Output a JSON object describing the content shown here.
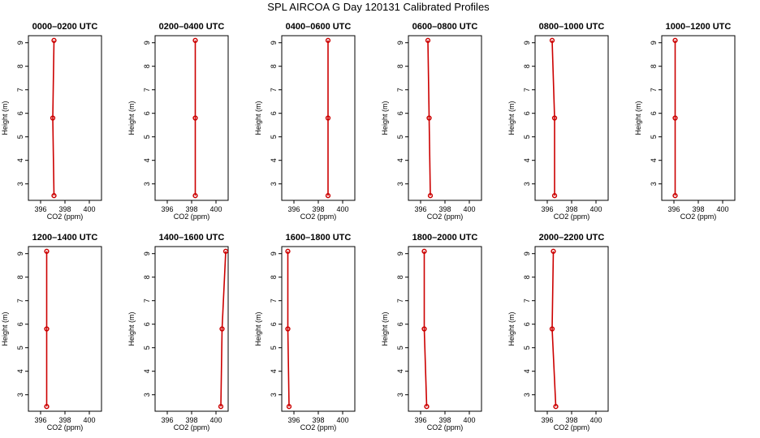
{
  "figure": {
    "title": "SPL AIRCOA G  Day 120131  Calibrated Profiles"
  },
  "chart_data": [
    {
      "type": "line",
      "title": "0000–0200 UTC",
      "xlabel": "CO2 (ppm)",
      "ylabel": "Height (m)",
      "xlim": [
        395,
        401
      ],
      "ylim": [
        2.3,
        9.3
      ],
      "xticks": [
        396,
        398,
        400
      ],
      "yticks": [
        3,
        4,
        5,
        6,
        7,
        8,
        9
      ],
      "grid": false,
      "x": [
        397.1,
        397.0,
        397.1
      ],
      "y": [
        2.5,
        5.8,
        9.1
      ]
    },
    {
      "type": "line",
      "title": "0200–0400 UTC",
      "xlabel": "CO2 (ppm)",
      "ylabel": "Height (m)",
      "xlim": [
        395,
        401
      ],
      "ylim": [
        2.3,
        9.3
      ],
      "xticks": [
        396,
        398,
        400
      ],
      "yticks": [
        3,
        4,
        5,
        6,
        7,
        8,
        9
      ],
      "grid": false,
      "x": [
        398.3,
        398.3,
        398.3
      ],
      "y": [
        2.5,
        5.8,
        9.1
      ]
    },
    {
      "type": "line",
      "title": "0400–0600 UTC",
      "xlabel": "CO2 (ppm)",
      "ylabel": "Height (m)",
      "xlim": [
        395,
        401
      ],
      "ylim": [
        2.3,
        9.3
      ],
      "xticks": [
        396,
        398,
        400
      ],
      "yticks": [
        3,
        4,
        5,
        6,
        7,
        8,
        9
      ],
      "grid": false,
      "x": [
        398.8,
        398.8,
        398.8
      ],
      "y": [
        2.5,
        5.8,
        9.1
      ]
    },
    {
      "type": "line",
      "title": "0600–0800 UTC",
      "xlabel": "CO2 (ppm)",
      "ylabel": "Height (m)",
      "xlim": [
        395,
        401
      ],
      "ylim": [
        2.3,
        9.3
      ],
      "xticks": [
        396,
        398,
        400
      ],
      "yticks": [
        3,
        4,
        5,
        6,
        7,
        8,
        9
      ],
      "grid": false,
      "x": [
        396.8,
        396.7,
        396.6
      ],
      "y": [
        2.5,
        5.8,
        9.1
      ]
    },
    {
      "type": "line",
      "title": "0800–1000 UTC",
      "xlabel": "CO2 (ppm)",
      "ylabel": "Height (m)",
      "xlim": [
        395,
        401
      ],
      "ylim": [
        2.3,
        9.3
      ],
      "xticks": [
        396,
        398,
        400
      ],
      "yticks": [
        3,
        4,
        5,
        6,
        7,
        8,
        9
      ],
      "grid": false,
      "x": [
        396.6,
        396.6,
        396.4
      ],
      "y": [
        2.5,
        5.8,
        9.1
      ]
    },
    {
      "type": "line",
      "title": "1000–1200 UTC",
      "xlabel": "CO2 (ppm)",
      "ylabel": "Height (m)",
      "xlim": [
        395,
        401
      ],
      "ylim": [
        2.3,
        9.3
      ],
      "xticks": [
        396,
        398,
        400
      ],
      "yticks": [
        3,
        4,
        5,
        6,
        7,
        8,
        9
      ],
      "grid": false,
      "x": [
        396.1,
        396.1,
        396.1
      ],
      "y": [
        2.5,
        5.8,
        9.1
      ]
    },
    {
      "type": "line",
      "title": "1200–1400 UTC",
      "xlabel": "CO2 (ppm)",
      "ylabel": "Height (m)",
      "xlim": [
        395,
        401
      ],
      "ylim": [
        2.3,
        9.3
      ],
      "xticks": [
        396,
        398,
        400
      ],
      "yticks": [
        3,
        4,
        5,
        6,
        7,
        8,
        9
      ],
      "grid": false,
      "x": [
        396.5,
        396.5,
        396.5
      ],
      "y": [
        2.5,
        5.8,
        9.1
      ]
    },
    {
      "type": "line",
      "title": "1400–1600 UTC",
      "xlabel": "CO2 (ppm)",
      "ylabel": "Height (m)",
      "xlim": [
        395,
        401
      ],
      "ylim": [
        2.3,
        9.3
      ],
      "xticks": [
        396,
        398,
        400
      ],
      "yticks": [
        3,
        4,
        5,
        6,
        7,
        8,
        9
      ],
      "grid": false,
      "x": [
        400.4,
        400.5,
        400.8
      ],
      "y": [
        2.5,
        5.8,
        9.1
      ]
    },
    {
      "type": "line",
      "title": "1600–1800 UTC",
      "xlabel": "CO2 (ppm)",
      "ylabel": "Height (m)",
      "xlim": [
        395,
        401
      ],
      "ylim": [
        2.3,
        9.3
      ],
      "xticks": [
        396,
        398,
        400
      ],
      "yticks": [
        3,
        4,
        5,
        6,
        7,
        8,
        9
      ],
      "grid": false,
      "x": [
        395.6,
        395.5,
        395.5
      ],
      "y": [
        2.5,
        5.8,
        9.1
      ]
    },
    {
      "type": "line",
      "title": "1800–2000 UTC",
      "xlabel": "CO2 (ppm)",
      "ylabel": "Height (m)",
      "xlim": [
        395,
        401
      ],
      "ylim": [
        2.3,
        9.3
      ],
      "xticks": [
        396,
        398,
        400
      ],
      "yticks": [
        3,
        4,
        5,
        6,
        7,
        8,
        9
      ],
      "grid": false,
      "x": [
        396.5,
        396.3,
        396.3
      ],
      "y": [
        2.5,
        5.8,
        9.1
      ]
    },
    {
      "type": "line",
      "title": "2000–2200 UTC",
      "xlabel": "CO2 (ppm)",
      "ylabel": "Height (m)",
      "xlim": [
        395,
        401
      ],
      "ylim": [
        2.3,
        9.3
      ],
      "xticks": [
        396,
        398,
        400
      ],
      "yticks": [
        3,
        4,
        5,
        6,
        7,
        8,
        9
      ],
      "grid": false,
      "x": [
        396.7,
        396.4,
        396.5
      ],
      "y": [
        2.5,
        5.8,
        9.1
      ]
    }
  ]
}
